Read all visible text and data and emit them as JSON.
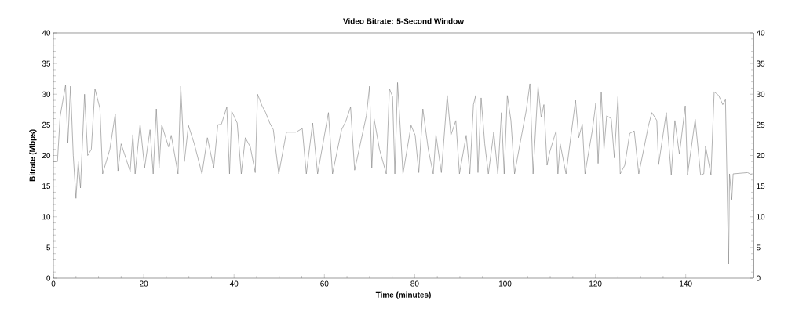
{
  "chart_data": {
    "type": "line",
    "title": "Video Bitrate: 5-Second Window",
    "xlabel": "Time (minutes)",
    "ylabel": "Bitrate (Mbps)",
    "xlim": [
      0,
      155
    ],
    "xticks": [
      0,
      20,
      40,
      60,
      80,
      100,
      120,
      140
    ],
    "ylim": [
      0,
      40
    ],
    "yticks": [
      0,
      5,
      10,
      15,
      20,
      25,
      30,
      35,
      40
    ],
    "y2lim": [
      0,
      40
    ],
    "y2ticks": [
      0,
      5,
      10,
      15,
      20,
      25,
      30,
      35,
      40
    ],
    "series": [
      {
        "color": "#808080",
        "x": [
          0,
          0.9,
          1.5,
          2.7,
          3.2,
          3.8,
          4.4,
          5.0,
          5.5,
          6.0,
          6.9,
          7.6,
          8.4,
          9.2,
          10.3,
          10.9,
          12.5,
          13.7,
          14.3,
          15.0,
          17.0,
          17.6,
          18.1,
          19.2,
          20.2,
          21.4,
          22.1,
          22.8,
          23.4,
          24.0,
          25.5,
          26.1,
          27.6,
          28.2,
          29.0,
          29.9,
          31.2,
          32.9,
          34.1,
          35.5,
          36.4,
          37.2,
          38.4,
          39.0,
          39.5,
          40.7,
          41.6,
          42.5,
          43.6,
          44.7,
          45.2,
          46.2,
          47.0,
          47.9,
          48.7,
          49.9,
          51.6,
          53.7,
          55.1,
          56.0,
          57.4,
          58.5,
          60.9,
          61.8,
          63.8,
          64.7,
          65.8,
          66.7,
          69.3,
          70.0,
          70.5,
          71.0,
          72.2,
          73.7,
          74.4,
          75.1,
          75.6,
          76.2,
          77.4,
          79.2,
          80.1,
          80.9,
          81.8,
          83.0,
          84.1,
          84.7,
          85.9,
          87.2,
          88.0,
          89.1,
          89.9,
          91.4,
          92.2,
          93.0,
          93.5,
          94.0,
          94.7,
          95.5,
          96.3,
          97.5,
          98.4,
          99.2,
          99.8,
          100.5,
          101.3,
          102.1,
          103.3,
          104.7,
          105.5,
          106.2,
          107.3,
          108.0,
          108.6,
          109.3,
          109.9,
          111.3,
          111.7,
          112.2,
          113.5,
          115.6,
          116.3,
          117.1,
          117.7,
          119.3,
          120.1,
          120.6,
          121.3,
          121.9,
          122.5,
          123.5,
          124.2,
          125.0,
          125.5,
          126.5,
          127.6,
          128.6,
          129.6,
          130.7,
          131.7,
          132.5,
          133.6,
          134.0,
          135.7,
          136.8,
          137.6,
          138.6,
          139.9,
          140.4,
          142.1,
          143.3,
          144.0,
          144.4,
          145.6,
          146.3,
          147.3,
          148.2,
          148.8,
          149.5,
          149.7,
          150.2,
          150.5,
          153.7,
          154.8
        ],
        "values": [
          19,
          19,
          26.4,
          31.5,
          22,
          31.3,
          20,
          13,
          19,
          14.7,
          30,
          20,
          21,
          30.9,
          27.7,
          17,
          21,
          26.8,
          17.5,
          21.9,
          17.4,
          23.4,
          17,
          25.1,
          18,
          24.2,
          17,
          27.6,
          18,
          25,
          21.4,
          23.3,
          17,
          31.3,
          19,
          24.9,
          21.9,
          17,
          22.9,
          18,
          25,
          25.1,
          27.9,
          17,
          27.2,
          25.3,
          17,
          22.9,
          21.4,
          17.2,
          30,
          28.1,
          27,
          25.3,
          24.2,
          17,
          23.8,
          23.8,
          24.4,
          17,
          25.3,
          17,
          27,
          17,
          24.2,
          25.5,
          27.9,
          17.6,
          26.5,
          31.3,
          18,
          26,
          21,
          17,
          30.9,
          29.6,
          17,
          31.9,
          17,
          24.9,
          23.3,
          17.2,
          27.6,
          21,
          17,
          23.4,
          17.2,
          29.8,
          23.3,
          25.7,
          17,
          23.3,
          17,
          28.3,
          29.8,
          17.2,
          29.4,
          21.9,
          17,
          23.8,
          17,
          27,
          17,
          29.8,
          25.7,
          17,
          21.9,
          27.4,
          31.7,
          17,
          31.3,
          26.2,
          28.3,
          18.4,
          20.6,
          24,
          17,
          21.9,
          17,
          29,
          22.9,
          25.1,
          17,
          24,
          28.5,
          18.7,
          30.4,
          21,
          26.5,
          26,
          19.6,
          29.6,
          17,
          18.4,
          23.6,
          24,
          17,
          21,
          24.7,
          27,
          25.7,
          18.5,
          27,
          16.8,
          25.7,
          20.2,
          28.1,
          16.8,
          25.9,
          16.8,
          17,
          21.5,
          16.8,
          30.4,
          29.8,
          28.3,
          29.1,
          2.3,
          17,
          12.8,
          17,
          17.2,
          16.8
        ]
      }
    ]
  }
}
